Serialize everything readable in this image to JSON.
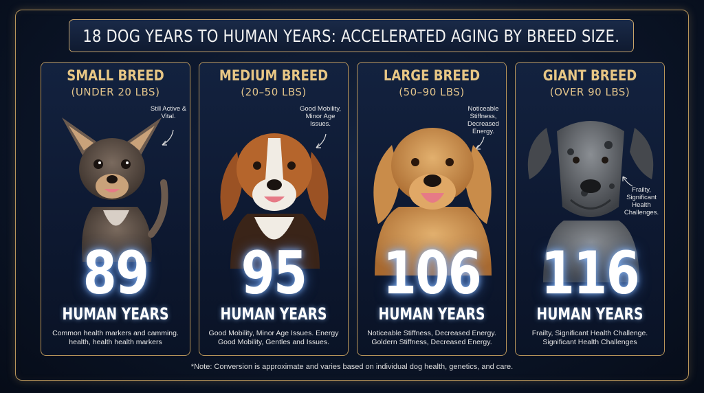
{
  "title": "18 Dog Years to Human Years: Accelerated Aging by Breed Size.",
  "cards": [
    {
      "title": "Small Breed",
      "subtitle": "(UNDER 20 LBS)",
      "note": "Still Active & Vital.",
      "years": "89",
      "label": "Human Years",
      "desc_line1": "Common health markers and camming.",
      "desc_line2": "health, health health markers",
      "dog_colors": {
        "fur": "#6b5a4e",
        "accent": "#c9a27a",
        "chest": "#d8cfc6"
      }
    },
    {
      "title": "Medium Breed",
      "subtitle": "(20–50 LBS)",
      "note": "Good Mobility, Minor Age Issues.",
      "years": "95",
      "label": "Human Years",
      "desc_line1": "Good Mobility, Minor Age Issues. Energy",
      "desc_line2": "Good Mobility, Gentles and Issues.",
      "dog_colors": {
        "fur": "#b5652c",
        "accent": "#3a2418",
        "chest": "#f1ece4"
      }
    },
    {
      "title": "Large Breed",
      "subtitle": "(50–90 LBS)",
      "note": "Noticeable Stiffness, Decreased Energy.",
      "years": "106",
      "label": "Human Years",
      "desc_line1": "Noticeable Stiffness, Decreased Energy.",
      "desc_line2": "Goldern Stiffness, Decreased Energy.",
      "dog_colors": {
        "fur": "#c98c4a",
        "accent": "#e2b06e",
        "chest": "#d99b55"
      }
    },
    {
      "title": "Giant Breed",
      "subtitle": "(OVER 90 LBS)",
      "note": "Frailty, Significant Health Challenges.",
      "years": "116",
      "label": "Human Years",
      "desc_line1": "Frailty, Significant Health Challenge.",
      "desc_line2": "Significant Health Challenges",
      "dog_colors": {
        "fur": "#5d6166",
        "accent": "#2c2f33",
        "chest": "#7b7f84"
      }
    }
  ],
  "footnote": "*Note: Conversion is approximate and varies based on individual dog health, genetics, and care.",
  "colors": {
    "gold": "#e7c685",
    "border": "#b8955a",
    "background": "#0b1528"
  }
}
